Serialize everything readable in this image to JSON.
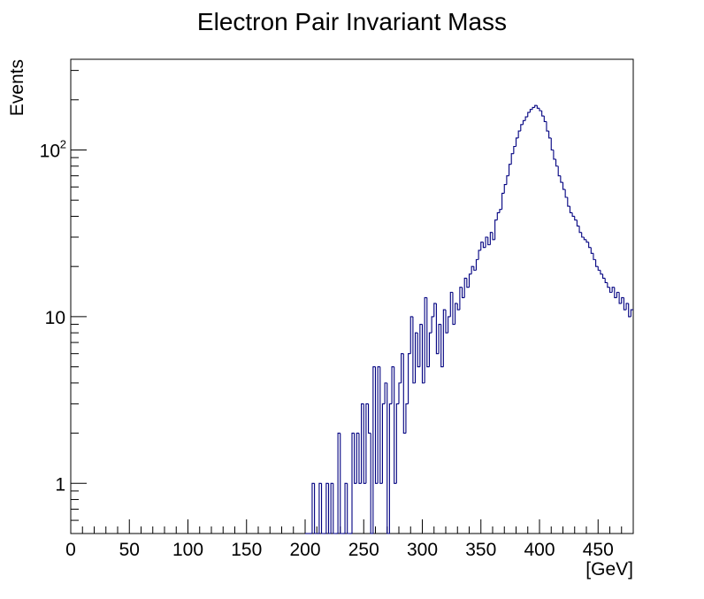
{
  "chart_data": {
    "type": "histogram",
    "title": "Electron Pair Invariant Mass",
    "xlabel": "[GeV]",
    "ylabel": "Events",
    "y_scale": "log",
    "xlim": [
      0,
      480
    ],
    "ylim": [
      0.5,
      350
    ],
    "grid": false,
    "legend": "none",
    "line_color": "#000080",
    "x_tick_labels": [
      "0",
      "50",
      "100",
      "150",
      "200",
      "250",
      "300",
      "350",
      "400",
      "450"
    ],
    "x_tick_values": [
      0,
      50,
      100,
      150,
      200,
      250,
      300,
      350,
      400,
      450
    ],
    "y_tick_labels": [
      {
        "value": 1,
        "base": "1",
        "exp": ""
      },
      {
        "value": 10,
        "base": "10",
        "exp": ""
      },
      {
        "value": 100,
        "base": "10",
        "exp": "2"
      }
    ],
    "bin_width": 2,
    "bins": [
      {
        "x": 200,
        "y": 0
      },
      {
        "x": 202,
        "y": 0
      },
      {
        "x": 204,
        "y": 0
      },
      {
        "x": 206,
        "y": 1
      },
      {
        "x": 208,
        "y": 0
      },
      {
        "x": 210,
        "y": 0
      },
      {
        "x": 212,
        "y": 1
      },
      {
        "x": 214,
        "y": 0
      },
      {
        "x": 216,
        "y": 0
      },
      {
        "x": 218,
        "y": 1
      },
      {
        "x": 220,
        "y": 0
      },
      {
        "x": 222,
        "y": 1
      },
      {
        "x": 224,
        "y": 0
      },
      {
        "x": 226,
        "y": 0
      },
      {
        "x": 228,
        "y": 2
      },
      {
        "x": 230,
        "y": 0
      },
      {
        "x": 232,
        "y": 0
      },
      {
        "x": 234,
        "y": 1
      },
      {
        "x": 236,
        "y": 0
      },
      {
        "x": 238,
        "y": 0
      },
      {
        "x": 240,
        "y": 2
      },
      {
        "x": 242,
        "y": 1
      },
      {
        "x": 244,
        "y": 2
      },
      {
        "x": 246,
        "y": 1
      },
      {
        "x": 248,
        "y": 3
      },
      {
        "x": 250,
        "y": 1
      },
      {
        "x": 252,
        "y": 3
      },
      {
        "x": 254,
        "y": 2
      },
      {
        "x": 256,
        "y": 0
      },
      {
        "x": 258,
        "y": 5
      },
      {
        "x": 260,
        "y": 1
      },
      {
        "x": 262,
        "y": 5
      },
      {
        "x": 264,
        "y": 1
      },
      {
        "x": 266,
        "y": 3
      },
      {
        "x": 268,
        "y": 4
      },
      {
        "x": 270,
        "y": 0
      },
      {
        "x": 272,
        "y": 3
      },
      {
        "x": 274,
        "y": 5
      },
      {
        "x": 276,
        "y": 1
      },
      {
        "x": 278,
        "y": 3
      },
      {
        "x": 280,
        "y": 4
      },
      {
        "x": 282,
        "y": 6
      },
      {
        "x": 284,
        "y": 2
      },
      {
        "x": 286,
        "y": 3
      },
      {
        "x": 288,
        "y": 6
      },
      {
        "x": 290,
        "y": 10
      },
      {
        "x": 292,
        "y": 4
      },
      {
        "x": 294,
        "y": 8
      },
      {
        "x": 296,
        "y": 5
      },
      {
        "x": 298,
        "y": 9
      },
      {
        "x": 300,
        "y": 4
      },
      {
        "x": 302,
        "y": 13
      },
      {
        "x": 304,
        "y": 5
      },
      {
        "x": 306,
        "y": 8
      },
      {
        "x": 308,
        "y": 10
      },
      {
        "x": 310,
        "y": 12
      },
      {
        "x": 312,
        "y": 6
      },
      {
        "x": 314,
        "y": 9
      },
      {
        "x": 316,
        "y": 5
      },
      {
        "x": 318,
        "y": 11
      },
      {
        "x": 320,
        "y": 8
      },
      {
        "x": 322,
        "y": 10
      },
      {
        "x": 324,
        "y": 14
      },
      {
        "x": 326,
        "y": 9
      },
      {
        "x": 328,
        "y": 12
      },
      {
        "x": 330,
        "y": 11
      },
      {
        "x": 332,
        "y": 15
      },
      {
        "x": 334,
        "y": 13
      },
      {
        "x": 336,
        "y": 17
      },
      {
        "x": 338,
        "y": 15
      },
      {
        "x": 340,
        "y": 18
      },
      {
        "x": 342,
        "y": 20
      },
      {
        "x": 344,
        "y": 19
      },
      {
        "x": 346,
        "y": 22
      },
      {
        "x": 348,
        "y": 25
      },
      {
        "x": 350,
        "y": 28
      },
      {
        "x": 352,
        "y": 26
      },
      {
        "x": 354,
        "y": 30
      },
      {
        "x": 356,
        "y": 27
      },
      {
        "x": 358,
        "y": 32
      },
      {
        "x": 360,
        "y": 29
      },
      {
        "x": 362,
        "y": 38
      },
      {
        "x": 364,
        "y": 42
      },
      {
        "x": 366,
        "y": 44
      },
      {
        "x": 368,
        "y": 55
      },
      {
        "x": 370,
        "y": 62
      },
      {
        "x": 372,
        "y": 70
      },
      {
        "x": 374,
        "y": 82
      },
      {
        "x": 376,
        "y": 95
      },
      {
        "x": 378,
        "y": 105
      },
      {
        "x": 380,
        "y": 118
      },
      {
        "x": 382,
        "y": 130
      },
      {
        "x": 384,
        "y": 142
      },
      {
        "x": 386,
        "y": 150
      },
      {
        "x": 388,
        "y": 158
      },
      {
        "x": 390,
        "y": 168
      },
      {
        "x": 392,
        "y": 175
      },
      {
        "x": 394,
        "y": 180
      },
      {
        "x": 396,
        "y": 185
      },
      {
        "x": 398,
        "y": 178
      },
      {
        "x": 400,
        "y": 172
      },
      {
        "x": 402,
        "y": 160
      },
      {
        "x": 404,
        "y": 148
      },
      {
        "x": 406,
        "y": 130
      },
      {
        "x": 408,
        "y": 118
      },
      {
        "x": 410,
        "y": 100
      },
      {
        "x": 412,
        "y": 88
      },
      {
        "x": 414,
        "y": 80
      },
      {
        "x": 416,
        "y": 70
      },
      {
        "x": 418,
        "y": 64
      },
      {
        "x": 420,
        "y": 58
      },
      {
        "x": 422,
        "y": 52
      },
      {
        "x": 424,
        "y": 46
      },
      {
        "x": 426,
        "y": 42
      },
      {
        "x": 428,
        "y": 40
      },
      {
        "x": 430,
        "y": 38
      },
      {
        "x": 432,
        "y": 35
      },
      {
        "x": 434,
        "y": 32
      },
      {
        "x": 436,
        "y": 30
      },
      {
        "x": 438,
        "y": 29
      },
      {
        "x": 440,
        "y": 28
      },
      {
        "x": 442,
        "y": 26
      },
      {
        "x": 444,
        "y": 24
      },
      {
        "x": 446,
        "y": 22
      },
      {
        "x": 448,
        "y": 20
      },
      {
        "x": 450,
        "y": 19
      },
      {
        "x": 452,
        "y": 18
      },
      {
        "x": 454,
        "y": 17
      },
      {
        "x": 456,
        "y": 16
      },
      {
        "x": 458,
        "y": 15
      },
      {
        "x": 460,
        "y": 14
      },
      {
        "x": 462,
        "y": 15
      },
      {
        "x": 464,
        "y": 13
      },
      {
        "x": 466,
        "y": 14
      },
      {
        "x": 468,
        "y": 12
      },
      {
        "x": 470,
        "y": 13
      },
      {
        "x": 472,
        "y": 11
      },
      {
        "x": 474,
        "y": 12
      },
      {
        "x": 476,
        "y": 10
      },
      {
        "x": 478,
        "y": 11
      }
    ]
  }
}
